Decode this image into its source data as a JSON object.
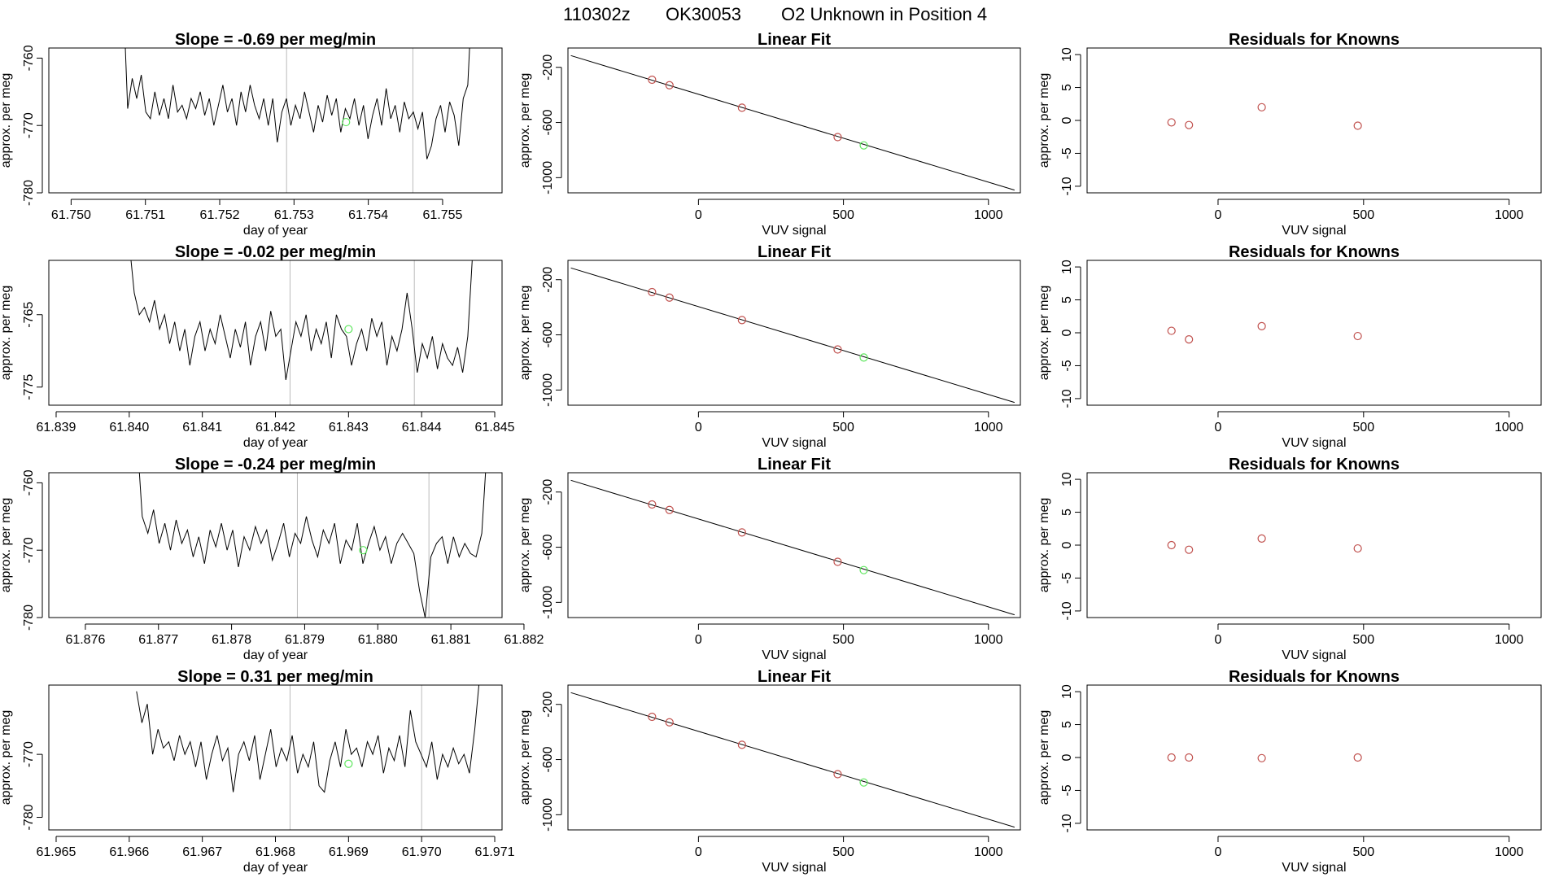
{
  "header": {
    "run": "110302z",
    "tank": "OK30053",
    "description": "O2 Unknown in Position  4"
  },
  "colors": {
    "line": "#000000",
    "known": "#c0504d",
    "unknown": "#5ce65c",
    "vline": "#bbbbbb",
    "frame": "#000000"
  },
  "chart_data": [
    {
      "type": "line",
      "title": "Slope =  -0.69  per meg/min",
      "xlabel": "day of year",
      "ylabel": "approx. per meg",
      "xlim": [
        61.7497,
        61.7558
      ],
      "ylim": [
        -780,
        -758.5
      ],
      "xticks": [
        "61.750",
        "61.751",
        "61.752",
        "61.753",
        "61.754",
        "61.755"
      ],
      "yticks": [
        "-760",
        "-770",
        "-780"
      ],
      "vlines": [
        61.7529,
        61.7546
      ],
      "unknown_point": [
        61.7537,
        -769.5
      ],
      "series": {
        "x_start": 61.7507,
        "x_end": 61.7554,
        "values": [
          -750,
          -767.5,
          -763,
          -766,
          -762.5,
          -768,
          -769,
          -765,
          -768.5,
          -766,
          -769,
          -764,
          -768,
          -767,
          -769,
          -766,
          -767.5,
          -765,
          -768.5,
          -766,
          -770,
          -767,
          -764,
          -768,
          -766,
          -770,
          -765,
          -768,
          -764,
          -767,
          -769,
          -766,
          -770,
          -766,
          -772.5,
          -768,
          -766,
          -770,
          -767,
          -769,
          -765,
          -768,
          -771,
          -767,
          -769.5,
          -765.5,
          -768.5,
          -766,
          -771,
          -767.5,
          -769,
          -766,
          -770,
          -767,
          -772,
          -768.5,
          -766,
          -770,
          -764.5,
          -769,
          -767,
          -771,
          -766.5,
          -769,
          -768,
          -770.5,
          -768,
          -775,
          -773,
          -769,
          -767,
          -771,
          -766.5,
          -768.5,
          -773,
          -766,
          -764,
          -750
        ]
      }
    },
    {
      "type": "line",
      "title": "Slope =  -0.02  per meg/min",
      "xlabel": "day of year",
      "ylabel": "approx. per meg",
      "xlim": [
        61.8389,
        61.8451
      ],
      "ylim": [
        -777.5,
        -757.5
      ],
      "xticks": [
        "61.839",
        "61.840",
        "61.841",
        "61.842",
        "61.843",
        "61.844",
        "61.845"
      ],
      "yticks": [
        "-765",
        "-775"
      ],
      "vlines": [
        61.8422,
        61.8439
      ],
      "unknown_point": [
        61.843,
        -767
      ],
      "series": {
        "x_start": 61.84,
        "x_end": 61.8447,
        "values": [
          -755,
          -762,
          -765,
          -764,
          -766,
          -763,
          -767,
          -765,
          -769,
          -766,
          -770,
          -767,
          -772,
          -768,
          -766,
          -770,
          -767,
          -769,
          -765,
          -768,
          -771,
          -767,
          -769.5,
          -766,
          -772,
          -768,
          -766,
          -770,
          -764.5,
          -768,
          -767,
          -774,
          -770,
          -766,
          -768,
          -765,
          -770,
          -767,
          -769,
          -766,
          -771,
          -765,
          -767,
          -768,
          -772,
          -769,
          -767,
          -770,
          -765.5,
          -768,
          -766,
          -772,
          -768,
          -770,
          -767,
          -762,
          -767,
          -773,
          -769,
          -771,
          -768,
          -772.5,
          -769,
          -771,
          -772,
          -769.5,
          -773,
          -768,
          -756
        ]
      }
    },
    {
      "type": "line",
      "title": "Slope =  -0.24  per meg/min",
      "xlabel": "day of year",
      "ylabel": "approx. per meg",
      "xlim": [
        61.8755,
        61.8817
      ],
      "ylim": [
        -780,
        -758.5
      ],
      "xticks": [
        "61.876",
        "61.877",
        "61.878",
        "61.879",
        "61.880",
        "61.881",
        "61.882"
      ],
      "yticks": [
        "-760",
        "-770",
        "-780"
      ],
      "vlines": [
        61.8789,
        61.8807
      ],
      "unknown_point": [
        61.8798,
        -770
      ],
      "series": {
        "x_start": 61.8767,
        "x_end": 61.8815,
        "values": [
          -752,
          -765,
          -767.5,
          -764,
          -769,
          -766,
          -770,
          -765.5,
          -769,
          -767,
          -771,
          -768,
          -772,
          -767,
          -769.5,
          -766,
          -770,
          -767,
          -772.5,
          -768,
          -770,
          -766.5,
          -769,
          -767,
          -771.5,
          -769,
          -766,
          -771,
          -767.5,
          -769,
          -765,
          -768.5,
          -771,
          -767,
          -769,
          -766,
          -772,
          -768.5,
          -770,
          -766,
          -772,
          -769,
          -766.5,
          -770,
          -768,
          -772,
          -769,
          -767.5,
          -769,
          -770.5,
          -776,
          -780,
          -771,
          -769,
          -768,
          -772,
          -768,
          -771,
          -769,
          -770.5,
          -771,
          -767.5,
          -754
        ]
      }
    },
    {
      "type": "line",
      "title": "Slope =  0.31  per meg/min",
      "xlabel": "day of year",
      "ylabel": "approx. per meg",
      "xlim": [
        61.9649,
        61.9711
      ],
      "ylim": [
        -782,
        -759
      ],
      "xticks": [
        "61.965",
        "61.966",
        "61.967",
        "61.968",
        "61.969",
        "61.970",
        "61.971"
      ],
      "yticks": [
        "-770",
        "-780"
      ],
      "vlines": [
        61.9682,
        61.97
      ],
      "unknown_point": [
        61.969,
        -771.5
      ],
      "series": {
        "x_start": 61.9661,
        "x_end": 61.9708,
        "values": [
          -760,
          -765,
          -762,
          -770,
          -766,
          -769,
          -768,
          -771,
          -767,
          -770,
          -768,
          -772,
          -768,
          -774,
          -770,
          -767,
          -771,
          -769,
          -776,
          -770,
          -768,
          -771,
          -767,
          -774,
          -770,
          -766,
          -772,
          -769,
          -771,
          -767,
          -773,
          -770,
          -772,
          -768,
          -775,
          -776,
          -771,
          -768,
          -772,
          -766,
          -770,
          -769,
          -772,
          -768,
          -770,
          -767,
          -773,
          -769,
          -771,
          -767,
          -772,
          -763,
          -768,
          -770,
          -772,
          -768,
          -774,
          -770,
          -772,
          -769,
          -771.5,
          -770,
          -773,
          -766,
          -757
        ]
      }
    },
    {
      "type": "scatter",
      "title": "Linear Fit",
      "xlabel": "VUV signal",
      "ylabel": "approx. per meg",
      "xlim": [
        -450,
        1110
      ],
      "ylim": [
        -1110,
        -60
      ],
      "xticks": [
        "0",
        "500",
        "1000"
      ],
      "yticks": [
        "-200",
        "-600",
        "-1000"
      ],
      "fit_line": {
        "x": [
          -440,
          1090
        ],
        "y": [
          -115,
          -1090
        ]
      },
      "knowns": [
        {
          "x": -160,
          "y": -290
        },
        {
          "x": -100,
          "y": -330
        },
        {
          "x": 150,
          "y": -493
        },
        {
          "x": 480,
          "y": -706
        }
      ],
      "unknown": {
        "x": 570,
        "y": -766
      }
    },
    {
      "type": "scatter",
      "title": "Linear Fit",
      "xlabel": "VUV signal",
      "ylabel": "approx. per meg",
      "xlim": [
        -450,
        1110
      ],
      "ylim": [
        -1110,
        -60
      ],
      "xticks": [
        "0",
        "500",
        "1000"
      ],
      "yticks": [
        "-200",
        "-600",
        "-1000"
      ],
      "fit_line": {
        "x": [
          -440,
          1090
        ],
        "y": [
          -115,
          -1090
        ]
      },
      "knowns": [
        {
          "x": -160,
          "y": -290
        },
        {
          "x": -100,
          "y": -330
        },
        {
          "x": 150,
          "y": -493
        },
        {
          "x": 480,
          "y": -706
        }
      ],
      "unknown": {
        "x": 570,
        "y": -764
      }
    },
    {
      "type": "scatter",
      "title": "Linear Fit",
      "xlabel": "VUV signal",
      "ylabel": "approx. per meg",
      "xlim": [
        -450,
        1110
      ],
      "ylim": [
        -1110,
        -60
      ],
      "xticks": [
        "0",
        "500",
        "1000"
      ],
      "yticks": [
        "-200",
        "-600",
        "-1000"
      ],
      "fit_line": {
        "x": [
          -440,
          1090
        ],
        "y": [
          -115,
          -1090
        ]
      },
      "knowns": [
        {
          "x": -160,
          "y": -290
        },
        {
          "x": -100,
          "y": -330
        },
        {
          "x": 150,
          "y": -493
        },
        {
          "x": 480,
          "y": -706
        }
      ],
      "unknown": {
        "x": 570,
        "y": -766
      }
    },
    {
      "type": "scatter",
      "title": "Linear Fit",
      "xlabel": "VUV signal",
      "ylabel": "approx. per meg",
      "xlim": [
        -450,
        1110
      ],
      "ylim": [
        -1110,
        -60
      ],
      "xticks": [
        "0",
        "500",
        "1000"
      ],
      "yticks": [
        "-200",
        "-600",
        "-1000"
      ],
      "fit_line": {
        "x": [
          -440,
          1090
        ],
        "y": [
          -115,
          -1090
        ]
      },
      "knowns": [
        {
          "x": -160,
          "y": -290
        },
        {
          "x": -100,
          "y": -330
        },
        {
          "x": 150,
          "y": -493
        },
        {
          "x": 480,
          "y": -706
        }
      ],
      "unknown": {
        "x": 570,
        "y": -766
      }
    },
    {
      "type": "scatter",
      "title": "Residuals for Knowns",
      "xlabel": "VUV signal",
      "ylabel": "approx. per meg",
      "xlim": [
        -450,
        1110
      ],
      "ylim": [
        -11,
        11
      ],
      "xticks": [
        "0",
        "500",
        "1000"
      ],
      "yticks": [
        "10",
        "5",
        "0",
        "-5",
        "-10"
      ],
      "points": [
        {
          "x": -160,
          "y": -0.3
        },
        {
          "x": -100,
          "y": -0.7
        },
        {
          "x": 150,
          "y": 2.0
        },
        {
          "x": 480,
          "y": -0.8
        }
      ]
    },
    {
      "type": "scatter",
      "title": "Residuals for Knowns",
      "xlabel": "VUV signal",
      "ylabel": "approx. per meg",
      "xlim": [
        -450,
        1110
      ],
      "ylim": [
        -11,
        11
      ],
      "xticks": [
        "0",
        "500",
        "1000"
      ],
      "yticks": [
        "10",
        "5",
        "0",
        "-5",
        "-10"
      ],
      "points": [
        {
          "x": -160,
          "y": 0.3
        },
        {
          "x": -100,
          "y": -1.0
        },
        {
          "x": 150,
          "y": 1.0
        },
        {
          "x": 480,
          "y": -0.5
        }
      ]
    },
    {
      "type": "scatter",
      "title": "Residuals for Knowns",
      "xlabel": "VUV signal",
      "ylabel": "approx. per meg",
      "xlim": [
        -450,
        1110
      ],
      "ylim": [
        -11,
        11
      ],
      "xticks": [
        "0",
        "500",
        "1000"
      ],
      "yticks": [
        "10",
        "5",
        "0",
        "-5",
        "-10"
      ],
      "points": [
        {
          "x": -160,
          "y": 0.0
        },
        {
          "x": -100,
          "y": -0.7
        },
        {
          "x": 150,
          "y": 1.0
        },
        {
          "x": 480,
          "y": -0.5
        }
      ]
    },
    {
      "type": "scatter",
      "title": "Residuals for Knowns",
      "xlabel": "VUV signal",
      "ylabel": "approx. per meg",
      "xlim": [
        -450,
        1110
      ],
      "ylim": [
        -11,
        11
      ],
      "xticks": [
        "0",
        "500",
        "1000"
      ],
      "yticks": [
        "10",
        "5",
        "0",
        "-5",
        "-10"
      ],
      "points": [
        {
          "x": -160,
          "y": 0.0
        },
        {
          "x": -100,
          "y": 0.0
        },
        {
          "x": 150,
          "y": -0.1
        },
        {
          "x": 480,
          "y": 0.0
        }
      ]
    }
  ]
}
